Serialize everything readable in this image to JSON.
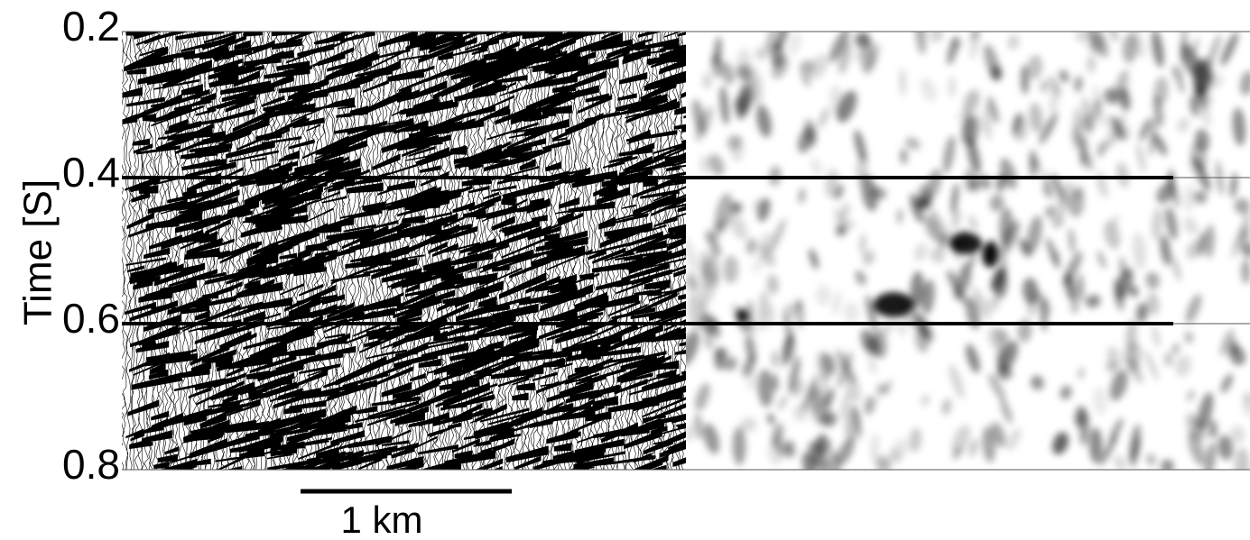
{
  "chart_data": {
    "type": "seismic-section",
    "ylabel": "Time [S]",
    "ylim": [
      0.2,
      0.8
    ],
    "yticks": [
      0.2,
      0.4,
      0.6,
      0.8
    ],
    "scale_bar": "1 km"
  }
}
